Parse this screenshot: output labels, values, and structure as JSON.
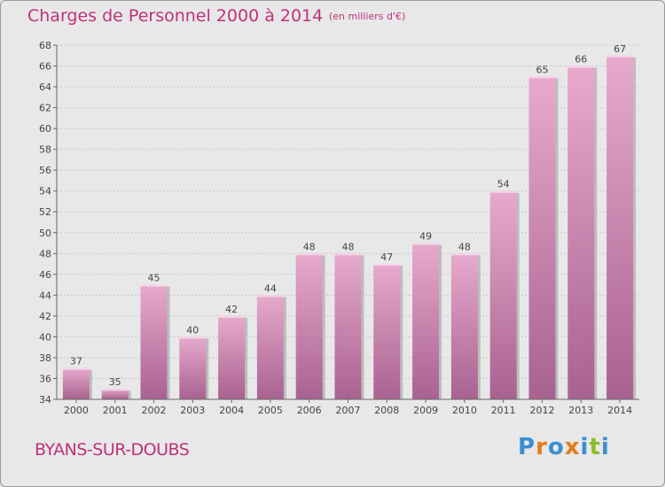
{
  "header": {
    "title": "Charges de Personnel 2000 à 2014",
    "subtitle": "(en milliers d'€)"
  },
  "footer": {
    "place": "BYANS-SUR-DOUBS",
    "logo": "Proxiti"
  },
  "colors": {
    "accent": "#c0317a",
    "bar_top": "#e7aacd",
    "bar_bottom": "#a86290",
    "logo_letters": [
      "#3a8fd0",
      "#e87a1c",
      "#3a8fd0",
      "#e87a1c",
      "#3a8fd0",
      "#8bbd2a",
      "#3a8fd0"
    ]
  },
  "chart_data": {
    "type": "bar",
    "categories": [
      "2000",
      "2001",
      "2002",
      "2003",
      "2004",
      "2005",
      "2006",
      "2007",
      "2008",
      "2009",
      "2010",
      "2011",
      "2012",
      "2013",
      "2014"
    ],
    "values": [
      37,
      35,
      45,
      40,
      42,
      44,
      48,
      48,
      47,
      49,
      48,
      54,
      65,
      66,
      67
    ],
    "title": "Charges de Personnel 2000 à 2014",
    "ylim": [
      34,
      68
    ],
    "yticks": [
      34,
      36,
      38,
      40,
      42,
      44,
      46,
      48,
      50,
      52,
      54,
      56,
      58,
      60,
      62,
      64,
      66,
      68
    ],
    "grid": true,
    "data_labels": true
  }
}
